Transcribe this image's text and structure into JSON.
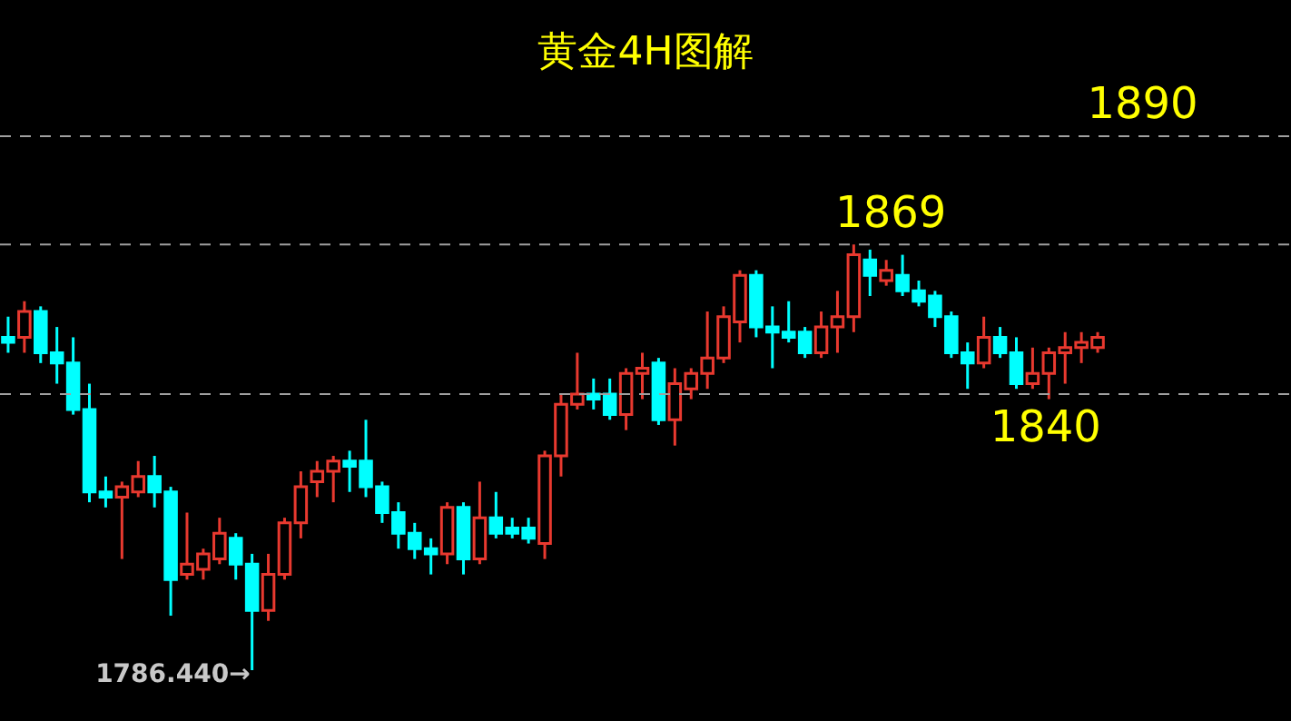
{
  "chart_data": {
    "type": "candlestick",
    "title": "黄金4H图解",
    "relative": false,
    "categories": [
      null,
      null,
      null,
      null,
      null,
      null,
      null,
      null,
      null,
      null,
      null,
      null,
      null,
      null,
      null,
      null,
      null,
      null,
      null,
      null,
      null,
      null,
      null,
      null,
      null,
      null,
      null,
      null,
      null,
      null,
      null,
      null,
      null,
      null,
      null,
      null,
      null,
      null,
      null,
      null,
      null,
      null,
      null,
      null,
      null,
      null,
      null,
      null,
      null,
      null,
      null,
      null,
      null,
      null,
      null,
      null,
      null,
      null,
      null,
      null,
      null,
      null,
      null,
      null,
      null,
      null,
      null,
      null
    ],
    "ohlc": [
      [
        1851,
        1855,
        1848,
        1850
      ],
      [
        1851,
        1858,
        1848,
        1856
      ],
      [
        1856,
        1857,
        1846,
        1848
      ],
      [
        1848,
        1853,
        1842,
        1846
      ],
      [
        1846,
        1851,
        1836,
        1837
      ],
      [
        1837,
        1842,
        1819,
        1821
      ],
      [
        1821,
        1824,
        1818,
        1820
      ],
      [
        1820,
        1823,
        1808,
        1822
      ],
      [
        1821,
        1827,
        1820,
        1824
      ],
      [
        1824,
        1828,
        1818,
        1821
      ],
      [
        1821,
        1822,
        1797,
        1804
      ],
      [
        1805,
        1817,
        1804,
        1807
      ],
      [
        1806,
        1810,
        1804,
        1809
      ],
      [
        1808,
        1816,
        1807,
        1813
      ],
      [
        1812,
        1813,
        1804,
        1807
      ],
      [
        1807,
        1809,
        1786.44,
        1798
      ],
      [
        1798,
        1809,
        1796,
        1805
      ],
      [
        1805,
        1816,
        1804,
        1815
      ],
      [
        1815,
        1825,
        1812,
        1822
      ],
      [
        1823,
        1827,
        1820,
        1825
      ],
      [
        1825,
        1828,
        1819,
        1827
      ],
      [
        1827,
        1829,
        1821,
        1826
      ],
      [
        1827,
        1835,
        1820,
        1822
      ],
      [
        1822,
        1823,
        1815,
        1817
      ],
      [
        1817,
        1819,
        1810,
        1813
      ],
      [
        1813,
        1815,
        1808,
        1810
      ],
      [
        1810,
        1812,
        1805,
        1809
      ],
      [
        1809,
        1819,
        1807,
        1818
      ],
      [
        1818,
        1819,
        1805,
        1808
      ],
      [
        1808,
        1823,
        1807,
        1816
      ],
      [
        1816,
        1821,
        1812,
        1813
      ],
      [
        1814,
        1816,
        1812,
        1813
      ],
      [
        1814,
        1816,
        1811,
        1812
      ],
      [
        1811,
        1829,
        1808,
        1828
      ],
      [
        1828,
        1840,
        1824,
        1838
      ],
      [
        1838,
        1848,
        1837,
        1840
      ],
      [
        1840,
        1843,
        1837,
        1839
      ],
      [
        1840,
        1843,
        1835,
        1836
      ],
      [
        1836,
        1845,
        1833,
        1844
      ],
      [
        1844,
        1848,
        1839,
        1845
      ],
      [
        1846,
        1847,
        1834,
        1835
      ],
      [
        1835,
        1845,
        1830,
        1842
      ],
      [
        1841,
        1845,
        1839,
        1844
      ],
      [
        1844,
        1856,
        1841,
        1847
      ],
      [
        1847,
        1857,
        1846,
        1855
      ],
      [
        1854,
        1864,
        1850,
        1863
      ],
      [
        1863,
        1864,
        1851,
        1853
      ],
      [
        1853,
        1857,
        1845,
        1852
      ],
      [
        1852,
        1858,
        1850,
        1851
      ],
      [
        1852,
        1853,
        1847,
        1848
      ],
      [
        1848,
        1856,
        1847,
        1853
      ],
      [
        1853,
        1860,
        1848,
        1855
      ],
      [
        1855,
        1869,
        1852,
        1867
      ],
      [
        1866,
        1868,
        1859,
        1863
      ],
      [
        1862,
        1866,
        1861,
        1864
      ],
      [
        1863,
        1867,
        1859,
        1860
      ],
      [
        1860,
        1862,
        1857,
        1858
      ],
      [
        1859,
        1860,
        1853,
        1855
      ],
      [
        1855,
        1856,
        1847,
        1848
      ],
      [
        1848,
        1850,
        1841,
        1846
      ],
      [
        1846,
        1855,
        1845,
        1851
      ],
      [
        1851,
        1853,
        1847,
        1848
      ],
      [
        1848,
        1851,
        1841,
        1842
      ],
      [
        1842,
        1849,
        1841,
        1844
      ],
      [
        1844,
        1849,
        1839,
        1848
      ],
      [
        1848,
        1852,
        1842,
        1849
      ],
      [
        1849,
        1852,
        1846,
        1850
      ],
      [
        1849,
        1852,
        1848,
        1851
      ]
    ],
    "colors": [
      "#00ffff",
      "#e8392f",
      "#00ffff",
      "#00ffff",
      "#00ffff",
      "#00ffff",
      "#00ffff",
      "#e8392f",
      "#e8392f",
      "#00ffff",
      "#00ffff",
      "#e8392f",
      "#e8392f",
      "#e8392f",
      "#00ffff",
      "#00ffff",
      "#e8392f",
      "#e8392f",
      "#e8392f",
      "#e8392f",
      "#e8392f",
      "#00ffff",
      "#00ffff",
      "#00ffff",
      "#00ffff",
      "#00ffff",
      "#00ffff",
      "#e8392f",
      "#00ffff",
      "#e8392f",
      "#00ffff",
      "#00ffff",
      "#00ffff",
      "#e8392f",
      "#e8392f",
      "#e8392f",
      "#00ffff",
      "#00ffff",
      "#e8392f",
      "#e8392f",
      "#00ffff",
      "#e8392f",
      "#e8392f",
      "#e8392f",
      "#e8392f",
      "#e8392f",
      "#00ffff",
      "#00ffff",
      "#00ffff",
      "#00ffff",
      "#e8392f",
      "#e8392f",
      "#e8392f",
      "#00ffff",
      "#e8392f",
      "#00ffff",
      "#00ffff",
      "#00ffff",
      "#00ffff",
      "#00ffff",
      "#e8392f",
      "#00ffff",
      "#00ffff",
      "#e8392f",
      "#e8392f",
      "#e8392f",
      "#e8392f",
      "#e8392f"
    ],
    "tick_labels": false,
    "legend": false,
    "ref_lines": [
      {
        "axis": "y",
        "value": 1890,
        "label": "1890",
        "color": "#a0a0a0",
        "line_style": "dashed"
      },
      {
        "axis": "y",
        "value": 1869,
        "label": "1869",
        "color": "#a0a0a0",
        "line_style": "dashed"
      },
      {
        "axis": "y",
        "value": 1840,
        "label": "1840",
        "color": "#a0a0a0",
        "line_style": "dashed"
      }
    ],
    "annotations": [
      "1786.440→"
    ]
  }
}
